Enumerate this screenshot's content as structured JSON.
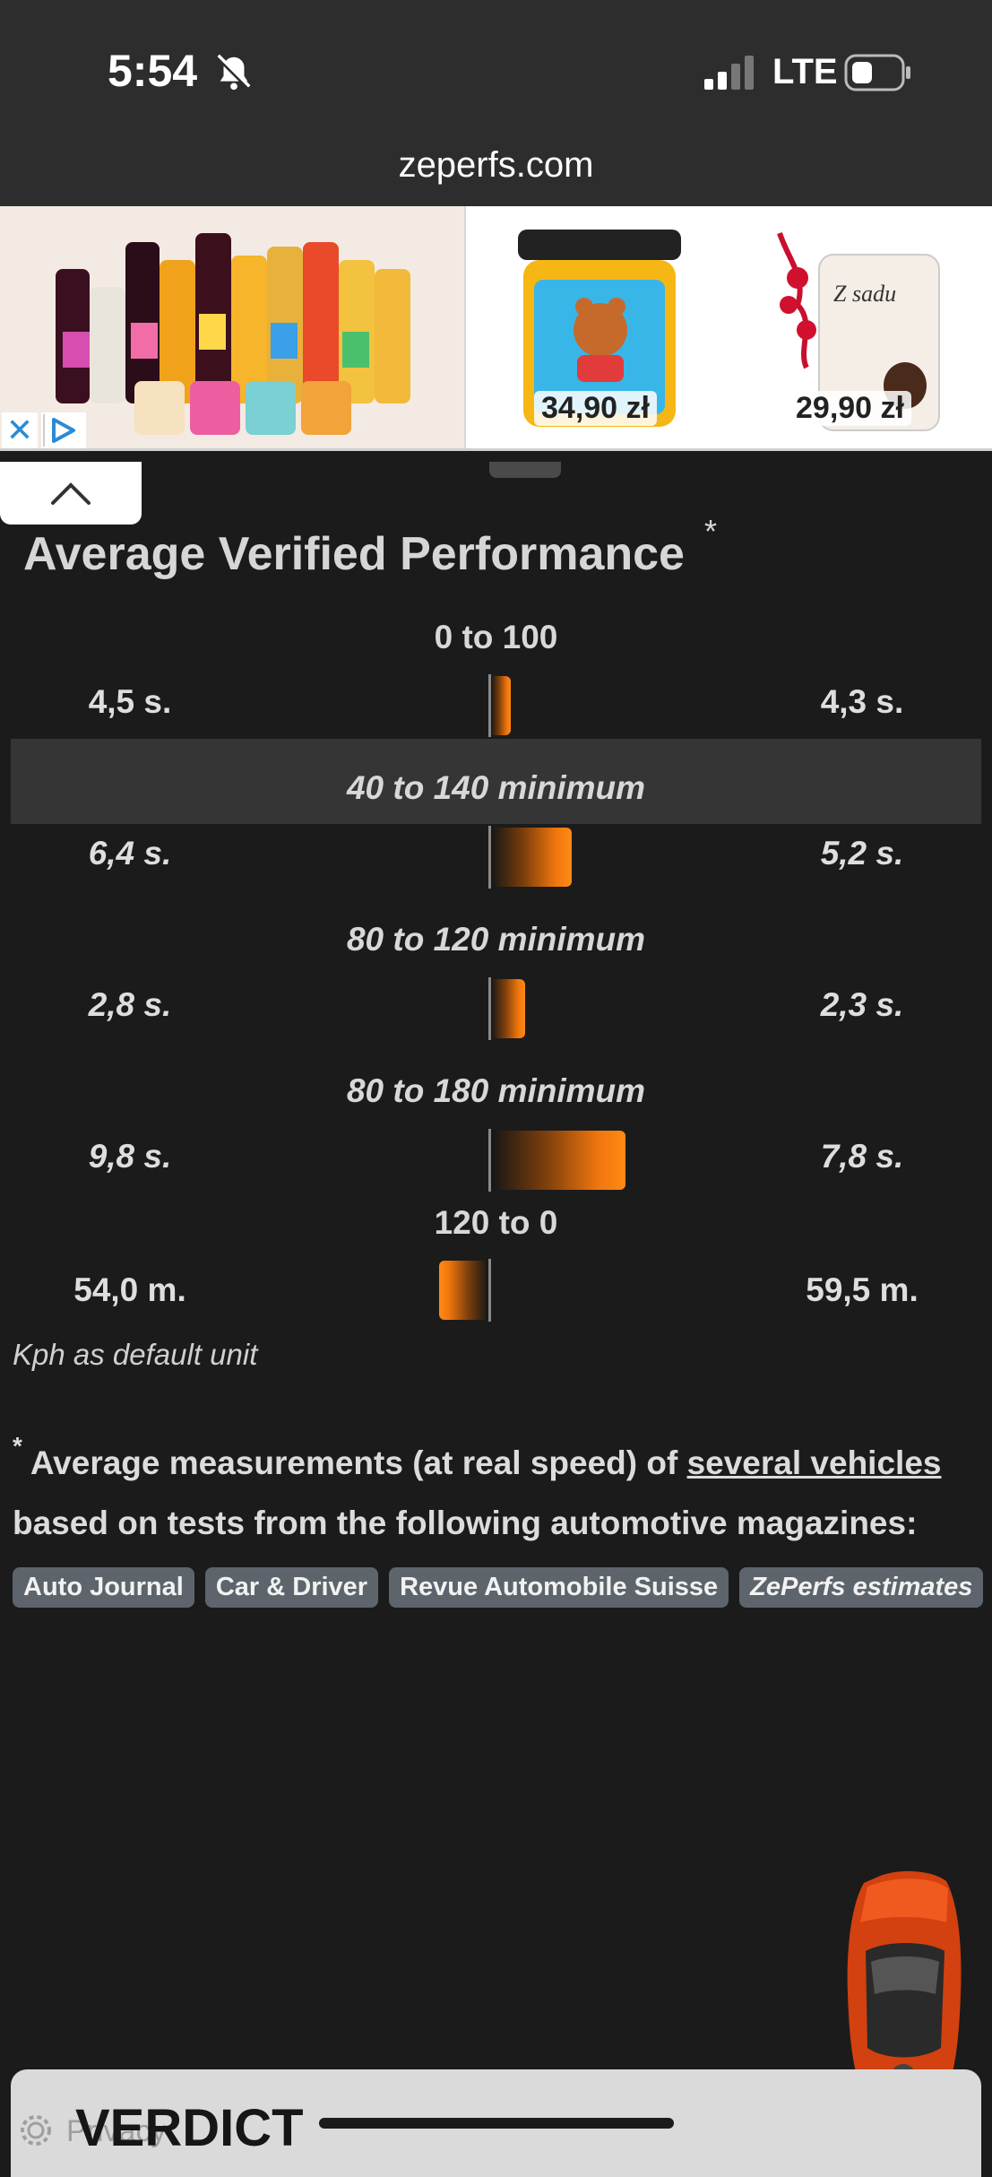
{
  "status_bar": {
    "time": "5:54",
    "network": "LTE"
  },
  "browser": {
    "url": "zeperfs.com"
  },
  "ad": {
    "close_label": "✕",
    "prices": [
      "34,90 zł",
      "29,90 zł"
    ]
  },
  "section": {
    "title": "Average Verified Performance",
    "title_marker": "*"
  },
  "metrics": [
    {
      "label": "0 to 100",
      "left": "4,5 s.",
      "right": "4,3 s.",
      "difference": 0.2
    },
    {
      "label": "40 to 140 minimum",
      "left": "6,4 s.",
      "right": "5,2 s.",
      "difference": 1.2
    },
    {
      "label": "80 to 120 minimum",
      "left": "2,8 s.",
      "right": "2,3 s.",
      "difference": 0.5
    },
    {
      "label": "80 to 180 minimum",
      "left": "9,8 s.",
      "right": "7,8 s.",
      "difference": 2.0
    },
    {
      "label": "120 to 0",
      "left": "54,0 m.",
      "right": "59,5 m.",
      "difference": -5.5
    }
  ],
  "unit_note": "Kph as default unit",
  "footnote": {
    "marker": "*",
    "text_before": " Average measurements (at real speed) of ",
    "link": "several vehicles",
    "text_after": " based on tests from the following automotive magazines:"
  },
  "sources": [
    "Auto Journal",
    "Car & Driver",
    "Revue Automobile Suisse",
    "ZePerfs estimates"
  ],
  "verdict": {
    "title": "VERDICT",
    "faint": "Privacy"
  },
  "colors": {
    "accent": "#f0760e",
    "background": "#1b1b1b",
    "bar_dark": "#161616"
  }
}
